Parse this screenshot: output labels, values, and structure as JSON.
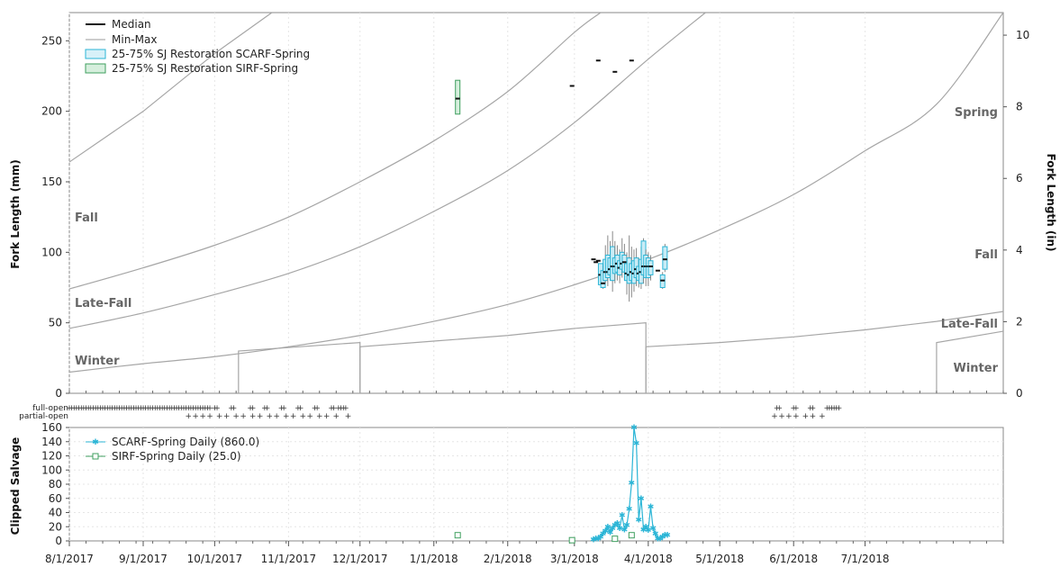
{
  "colors": {
    "scarf": "#2bb5d6",
    "sirf": "#3f9f5f",
    "median": "#111111",
    "minmax": "#888888",
    "curve": "#a6a6a6"
  },
  "x_tick_labels": [
    "8/1/2017",
    "9/1/2017",
    "10/1/2017",
    "11/1/2017",
    "12/1/2017",
    "1/1/2018",
    "2/1/2018",
    "3/1/2018",
    "4/1/2018",
    "5/1/2018",
    "6/1/2018",
    "7/1/2018"
  ],
  "labels": {
    "left_axis_title": "Fork Length (mm)",
    "right_axis_title": "Fork Length (in)",
    "bottom_axis_title": "Clipped Salvage",
    "full_open": "full-open",
    "partial_open": "partial-open"
  },
  "regions_left": [
    "Fall",
    "Late-Fall",
    "Winter"
  ],
  "regions_right": [
    "Spring",
    "Fall",
    "Late-Fall",
    "Winter"
  ],
  "legend_top": [
    "Median",
    "Min-Max",
    "25-75% SJ Restoration SCARF-Spring",
    "25-75% SJ Restoration SIRF-Spring"
  ],
  "legend_bottom": [
    "SCARF-Spring Daily (860.0)",
    "SIRF-Spring Daily (25.0)"
  ],
  "chart_data": [
    {
      "type": "box",
      "y_left_ticks": [
        0,
        50,
        100,
        150,
        200,
        250
      ],
      "y_right_ticks": [
        0,
        2,
        4,
        6,
        8,
        10
      ],
      "ylim": [
        0,
        270
      ],
      "x_range": [
        "2017-08-01",
        "2018-08-28"
      ],
      "curves": [
        [
          [
            "2017-08-01",
            164
          ],
          [
            "2017-09-01",
            200
          ],
          [
            "2017-10-01",
            241
          ],
          [
            "2017-10-25",
            270
          ]
        ],
        [
          [
            "2017-08-01",
            74
          ],
          [
            "2017-09-01",
            89
          ],
          [
            "2017-10-01",
            105
          ],
          [
            "2017-11-01",
            125
          ],
          [
            "2017-12-01",
            150
          ],
          [
            "2018-01-01",
            179
          ],
          [
            "2018-02-01",
            214
          ],
          [
            "2018-03-01",
            256
          ],
          [
            "2018-03-12",
            270
          ]
        ],
        [
          [
            "2017-08-01",
            46
          ],
          [
            "2017-09-01",
            57
          ],
          [
            "2017-10-01",
            70
          ],
          [
            "2017-11-01",
            85
          ],
          [
            "2017-12-01",
            104
          ],
          [
            "2018-01-01",
            129
          ],
          [
            "2018-02-01",
            158
          ],
          [
            "2018-03-01",
            192
          ],
          [
            "2018-04-01",
            237
          ],
          [
            "2018-04-25",
            270
          ]
        ],
        [
          [
            "2017-08-01",
            15
          ],
          [
            "2017-09-01",
            21
          ],
          [
            "2017-10-01",
            26
          ],
          [
            "2017-11-01",
            33
          ],
          [
            "2017-12-01",
            41
          ],
          [
            "2018-01-01",
            51
          ],
          [
            "2018-02-01",
            63
          ],
          [
            "2018-03-01",
            77
          ],
          [
            "2018-04-01",
            95
          ],
          [
            "2018-05-01",
            116
          ],
          [
            "2018-06-01",
            141
          ],
          [
            "2018-07-01",
            172
          ],
          [
            "2018-07-31",
            205
          ],
          [
            "2018-08-28",
            270
          ]
        ],
        [
          [
            "2017-10-11",
            0
          ],
          [
            "2017-10-11",
            30
          ],
          [
            "2017-12-01",
            36
          ],
          [
            "2017-12-01",
            0
          ]
        ],
        [
          [
            "2017-12-01",
            0
          ],
          [
            "2017-12-01",
            33
          ],
          [
            "2018-01-01",
            37
          ],
          [
            "2018-02-01",
            41
          ],
          [
            "2018-03-01",
            46
          ],
          [
            "2018-03-31",
            50
          ],
          [
            "2018-03-31",
            0
          ]
        ],
        [
          [
            "2018-03-31",
            0
          ],
          [
            "2018-03-31",
            33
          ],
          [
            "2018-05-01",
            36
          ],
          [
            "2018-06-01",
            40
          ],
          [
            "2018-07-01",
            45
          ],
          [
            "2018-07-31",
            51
          ],
          [
            "2018-08-28",
            58
          ]
        ],
        [
          [
            "2018-07-31",
            0
          ],
          [
            "2018-07-31",
            36
          ],
          [
            "2018-08-28",
            44
          ]
        ]
      ],
      "sirf_boxes": [
        {
          "date": "2018-01-11",
          "q1": 198,
          "q3": 222,
          "median": 209
        }
      ],
      "isolated_medians": [
        {
          "date": "2018-02-28",
          "median": 218
        },
        {
          "date": "2018-03-11",
          "median": 236
        },
        {
          "date": "2018-03-18",
          "median": 228
        },
        {
          "date": "2018-03-25",
          "median": 236
        }
      ],
      "scarf_boxes": [
        {
          "date": "2018-03-09",
          "median": 95
        },
        {
          "date": "2018-03-10",
          "median": 93
        },
        {
          "date": "2018-03-11",
          "median": 94
        },
        {
          "date": "2018-03-12",
          "q1": 77,
          "q3": 92,
          "median": 84,
          "min": 77,
          "max": 92
        },
        {
          "date": "2018-03-13",
          "q1": 75,
          "q3": 87,
          "median": 78,
          "min": 74,
          "max": 90
        },
        {
          "date": "2018-03-14",
          "q1": 80,
          "q3": 95,
          "median": 86,
          "min": 78,
          "max": 105
        },
        {
          "date": "2018-03-15",
          "q1": 82,
          "q3": 98,
          "median": 86,
          "min": 76,
          "max": 112
        },
        {
          "date": "2018-03-16",
          "q1": 84,
          "q3": 96,
          "median": 88,
          "min": 80,
          "max": 108
        },
        {
          "date": "2018-03-17",
          "q1": 80,
          "q3": 104,
          "median": 90,
          "min": 72,
          "max": 115
        },
        {
          "date": "2018-03-18",
          "q1": 85,
          "q3": 96,
          "median": 90,
          "min": 78,
          "max": 108
        },
        {
          "date": "2018-03-19",
          "q1": 86,
          "q3": 98,
          "median": 92,
          "min": 80,
          "max": 105
        },
        {
          "date": "2018-03-20",
          "q1": 84,
          "q3": 94,
          "median": 89,
          "min": 78,
          "max": 102
        },
        {
          "date": "2018-03-21",
          "q1": 88,
          "q3": 100,
          "median": 92,
          "min": 82,
          "max": 110
        },
        {
          "date": "2018-03-22",
          "q1": 86,
          "q3": 98,
          "median": 93,
          "min": 80,
          "max": 106
        },
        {
          "date": "2018-03-23",
          "q1": 80,
          "q3": 92,
          "median": 85,
          "min": 70,
          "max": 100
        },
        {
          "date": "2018-03-24",
          "q1": 78,
          "q3": 96,
          "median": 84,
          "min": 65,
          "max": 112
        },
        {
          "date": "2018-03-25",
          "q1": 80,
          "q3": 92,
          "median": 86,
          "min": 68,
          "max": 104
        },
        {
          "date": "2018-03-26",
          "q1": 78,
          "q3": 94,
          "median": 85,
          "min": 72,
          "max": 102
        },
        {
          "date": "2018-03-27",
          "q1": 82,
          "q3": 96,
          "median": 88,
          "min": 76,
          "max": 103
        },
        {
          "date": "2018-03-28",
          "q1": 80,
          "q3": 90,
          "median": 85,
          "min": 75,
          "max": 96
        },
        {
          "date": "2018-03-29",
          "q1": 78,
          "q3": 95,
          "median": 86,
          "min": 74,
          "max": 104
        },
        {
          "date": "2018-03-30",
          "q1": 84,
          "q3": 108,
          "median": 90,
          "min": 78,
          "max": 110
        },
        {
          "date": "2018-03-31",
          "q1": 82,
          "q3": 98,
          "median": 90,
          "min": 76,
          "max": 102
        },
        {
          "date": "2018-04-01",
          "q1": 82,
          "q3": 96,
          "median": 90,
          "min": 76,
          "max": 100
        },
        {
          "date": "2018-04-02",
          "q1": 84,
          "q3": 94,
          "median": 90,
          "min": 80,
          "max": 98
        },
        {
          "date": "2018-04-05",
          "median": 87
        },
        {
          "date": "2018-04-07",
          "q1": 75,
          "q3": 84,
          "median": 80,
          "min": 74,
          "max": 86
        },
        {
          "date": "2018-04-08",
          "q1": 88,
          "q3": 104,
          "median": 95,
          "min": 86,
          "max": 106
        }
      ]
    },
    {
      "type": "line",
      "ylim": [
        0,
        160
      ],
      "y_ticks": [
        0,
        20,
        40,
        60,
        80,
        100,
        120,
        140,
        160
      ],
      "series": [
        {
          "name": "SCARF-Spring Daily (860.0)",
          "points": [
            [
              "2018-03-09",
              2
            ],
            [
              "2018-03-10",
              3
            ],
            [
              "2018-03-11",
              3
            ],
            [
              "2018-03-12",
              6
            ],
            [
              "2018-03-13",
              10
            ],
            [
              "2018-03-14",
              14
            ],
            [
              "2018-03-15",
              20
            ],
            [
              "2018-03-16",
              12
            ],
            [
              "2018-03-17",
              18
            ],
            [
              "2018-03-18",
              22
            ],
            [
              "2018-03-19",
              25
            ],
            [
              "2018-03-20",
              18
            ],
            [
              "2018-03-21",
              36
            ],
            [
              "2018-03-22",
              16
            ],
            [
              "2018-03-23",
              22
            ],
            [
              "2018-03-24",
              45
            ],
            [
              "2018-03-25",
              82
            ],
            [
              "2018-03-26",
              160
            ],
            [
              "2018-03-27",
              138
            ],
            [
              "2018-03-28",
              30
            ],
            [
              "2018-03-29",
              60
            ],
            [
              "2018-03-30",
              16
            ],
            [
              "2018-03-31",
              20
            ],
            [
              "2018-04-01",
              15
            ],
            [
              "2018-04-02",
              48
            ],
            [
              "2018-04-03",
              18
            ],
            [
              "2018-04-04",
              10
            ],
            [
              "2018-04-05",
              3
            ],
            [
              "2018-04-06",
              3
            ],
            [
              "2018-04-07",
              6
            ],
            [
              "2018-04-08",
              8
            ],
            [
              "2018-04-09",
              8
            ]
          ]
        },
        {
          "name": "SIRF-Spring Daily (25.0)",
          "points": [
            [
              "2018-01-11",
              8
            ],
            [
              "2018-02-28",
              1
            ],
            [
              "2018-03-18",
              3
            ],
            [
              "2018-03-25",
              8
            ]
          ]
        }
      ]
    }
  ],
  "ops": {
    "full_open_dates": [
      "2017-08-01",
      "2017-08-02",
      "2017-08-03",
      "2017-08-04",
      "2017-08-05",
      "2017-08-06",
      "2017-08-07",
      "2017-08-08",
      "2017-08-09",
      "2017-08-10",
      "2017-08-11",
      "2017-08-12",
      "2017-08-13",
      "2017-08-14",
      "2017-08-15",
      "2017-08-16",
      "2017-08-17",
      "2017-08-18",
      "2017-08-19",
      "2017-08-20",
      "2017-08-21",
      "2017-08-22",
      "2017-08-23",
      "2017-08-24",
      "2017-08-25",
      "2017-08-26",
      "2017-08-27",
      "2017-08-28",
      "2017-08-29",
      "2017-08-30",
      "2017-08-31",
      "2017-09-01",
      "2017-09-02",
      "2017-09-03",
      "2017-09-04",
      "2017-09-05",
      "2017-09-06",
      "2017-09-07",
      "2017-09-08",
      "2017-09-09",
      "2017-09-10",
      "2017-09-11",
      "2017-09-12",
      "2017-09-13",
      "2017-09-14",
      "2017-09-15",
      "2017-09-16",
      "2017-09-17",
      "2017-09-18",
      "2017-09-19",
      "2017-09-20",
      "2017-09-21",
      "2017-09-22",
      "2017-09-23",
      "2017-09-24",
      "2017-09-25",
      "2017-09-26",
      "2017-09-27",
      "2017-09-28",
      "2017-09-29",
      "2017-10-01",
      "2017-10-02",
      "2017-10-08",
      "2017-10-09",
      "2017-10-16",
      "2017-10-17",
      "2017-10-22",
      "2017-10-23",
      "2017-10-29",
      "2017-10-30",
      "2017-11-05",
      "2017-11-06",
      "2017-11-12",
      "2017-11-13",
      "2017-11-19",
      "2017-11-20",
      "2017-11-22",
      "2017-11-23",
      "2017-11-24",
      "2017-11-25",
      "2018-05-25",
      "2018-05-26",
      "2018-06-01",
      "2018-06-02",
      "2018-06-08",
      "2018-06-09",
      "2018-06-15",
      "2018-06-16",
      "2018-06-17",
      "2018-06-18",
      "2018-06-19",
      "2018-06-20"
    ],
    "partial_open_dates": [
      "2017-09-20",
      "2017-09-23",
      "2017-09-26",
      "2017-09-29",
      "2017-10-03",
      "2017-10-06",
      "2017-10-10",
      "2017-10-13",
      "2017-10-17",
      "2017-10-20",
      "2017-10-24",
      "2017-10-27",
      "2017-10-31",
      "2017-11-03",
      "2017-11-07",
      "2017-11-10",
      "2017-11-14",
      "2017-11-17",
      "2017-11-21",
      "2017-11-26",
      "2018-05-24",
      "2018-05-27",
      "2018-05-30",
      "2018-06-02",
      "2018-06-06",
      "2018-06-09",
      "2018-06-13"
    ]
  }
}
